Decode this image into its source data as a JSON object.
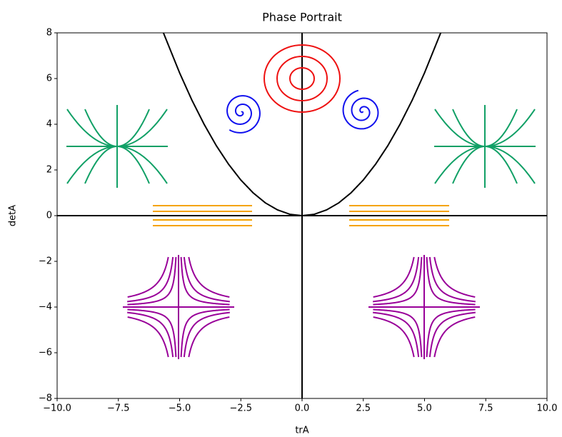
{
  "chart_data": {
    "type": "line",
    "title": "Phase Portrait",
    "x_label": "trA",
    "y_label": "detA",
    "xlim": [
      -10,
      10
    ],
    "ylim": [
      -8,
      8
    ],
    "xticks": [
      {
        "value": -10,
        "label": "−10.0"
      },
      {
        "value": -7.5,
        "label": "−7.5"
      },
      {
        "value": -5,
        "label": "−5.0"
      },
      {
        "value": -2.5,
        "label": "−2.5"
      },
      {
        "value": 0,
        "label": "0.0"
      },
      {
        "value": 2.5,
        "label": "2.5"
      },
      {
        "value": 5,
        "label": "5.0"
      },
      {
        "value": 7.5,
        "label": "7.5"
      },
      {
        "value": 10,
        "label": "10.0"
      }
    ],
    "yticks": [
      {
        "value": -8,
        "label": "−8"
      },
      {
        "value": -6,
        "label": "−6"
      },
      {
        "value": -4,
        "label": "−4"
      },
      {
        "value": -2,
        "label": "−2"
      },
      0,
      2,
      4,
      6,
      8
    ],
    "x": [
      -5.66,
      -5,
      -4.5,
      -4,
      -3.5,
      -3,
      -2.5,
      -2,
      -1.5,
      -1,
      -0.5,
      0,
      0.5,
      1,
      1.5,
      2,
      2.5,
      3,
      3.5,
      4,
      4.5,
      5,
      5.66
    ],
    "series": [
      {
        "color": "#000000",
        "values": [
          8,
          6.25,
          5.06,
          4,
          3.06,
          2.25,
          1.56,
          1,
          0.56,
          0.25,
          0.06,
          0,
          0.06,
          0.25,
          0.56,
          1,
          1.56,
          2.25,
          3.06,
          4,
          5.06,
          6.25,
          8
        ]
      }
    ]
  }
}
